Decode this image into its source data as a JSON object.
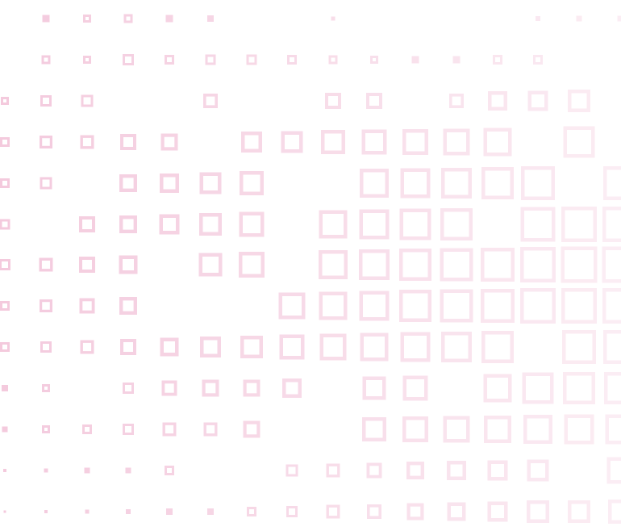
{
  "background": {
    "color": "#ffffff",
    "pattern": "square-outline-grid",
    "square_color": "#f0b8d2",
    "fade_direction": "left-to-right"
  }
}
